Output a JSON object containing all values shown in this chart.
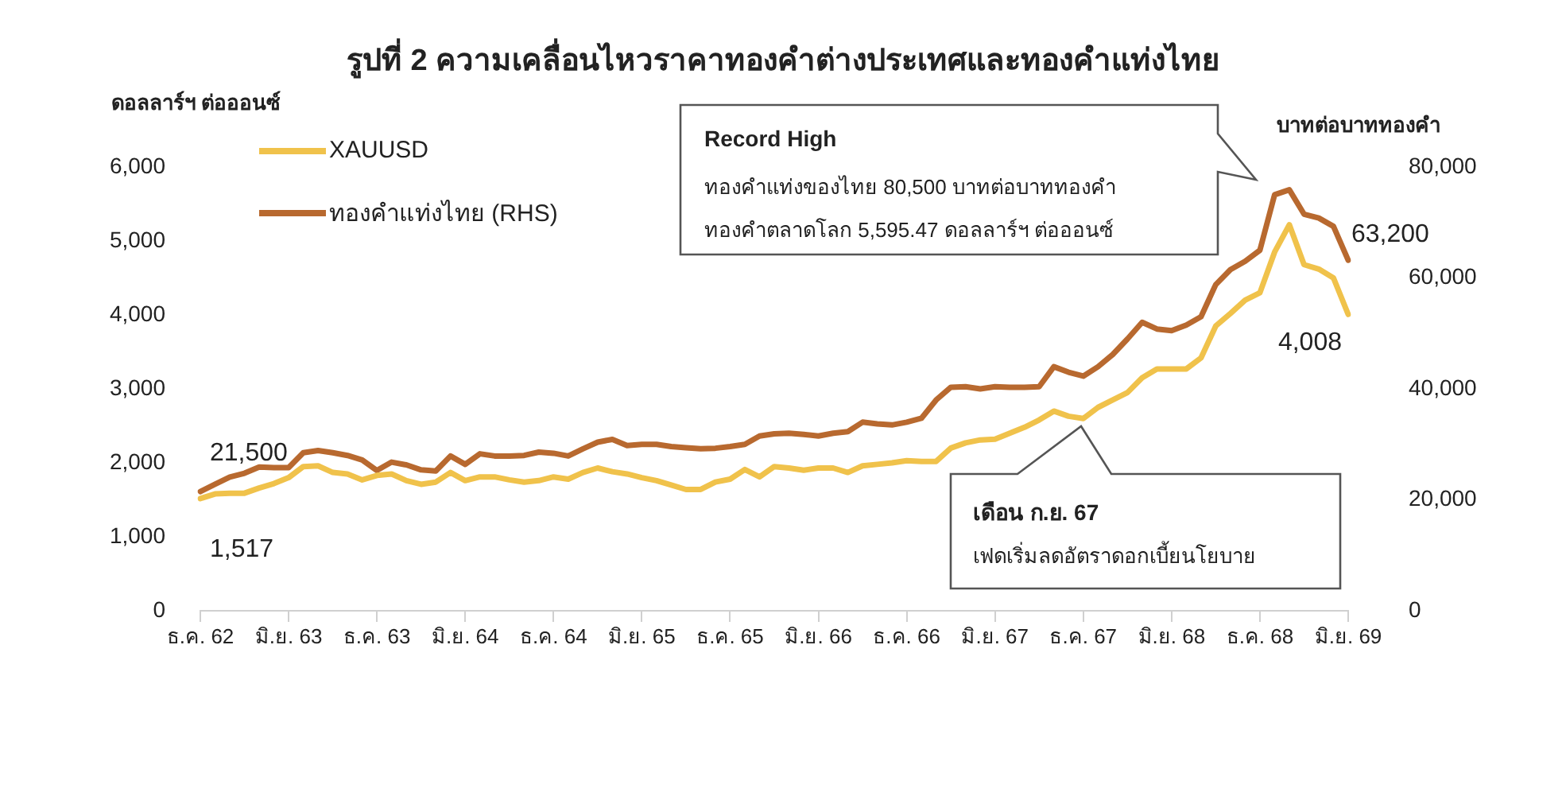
{
  "chart_data": {
    "type": "line",
    "title": "รูปที่ 2 ความเคลื่อนไหวราคาทองคำต่างประเทศและทองคำแท่งไทย",
    "ylabel": "ดอลลาร์ฯ ต่อออนซ์",
    "y2label": "บาทต่อบาททองคำ",
    "categories": [
      "ธ.ค. 62",
      null,
      null,
      null,
      null,
      null,
      "มิ.ย. 63",
      null,
      null,
      null,
      null,
      null,
      "ธ.ค. 63",
      null,
      null,
      null,
      null,
      null,
      "มิ.ย. 64",
      null,
      null,
      null,
      null,
      null,
      "ธ.ค. 64",
      null,
      null,
      null,
      null,
      null,
      "มิ.ย. 65",
      null,
      null,
      null,
      null,
      null,
      "ธ.ค. 65",
      null,
      null,
      null,
      null,
      null,
      "มิ.ย. 66",
      null,
      null,
      null,
      null,
      null,
      "ธ.ค. 66",
      null,
      null,
      null,
      null,
      null,
      "มิ.ย. 67",
      null,
      null,
      null,
      null,
      null,
      "ธ.ค. 67",
      null,
      null,
      null,
      null,
      null,
      "มิ.ย. 68",
      null,
      null,
      null,
      null,
      null,
      "ธ.ค. 68",
      null,
      null,
      null,
      null,
      null,
      "มิ.ย. 69"
    ],
    "series": [
      {
        "name": "XAUUSD",
        "color": "#f0c24b",
        "values": [
          1517,
          1580,
          1590,
          1590,
          1660,
          1720,
          1800,
          1950,
          1960,
          1870,
          1850,
          1770,
          1830,
          1850,
          1760,
          1710,
          1740,
          1870,
          1760,
          1810,
          1810,
          1770,
          1740,
          1760,
          1810,
          1780,
          1870,
          1930,
          1880,
          1850,
          1800,
          1760,
          1700,
          1640,
          1640,
          1740,
          1780,
          1910,
          1810,
          1950,
          1930,
          1900,
          1930,
          1930,
          1870,
          1960,
          1980,
          2000,
          2030,
          2020,
          2020,
          2200,
          2270,
          2310,
          2320,
          2400,
          2480,
          2580,
          2700,
          2630,
          2600,
          2750,
          2850,
          2950,
          3150,
          3270,
          3270,
          3270,
          3420,
          3850,
          4020,
          4200,
          4300,
          4850,
          5220,
          4680,
          4620,
          4500,
          4008
        ],
        "value_labels": [
          "1,517",
          null,
          null,
          null,
          null,
          null,
          null,
          null,
          null,
          null,
          null,
          null,
          null,
          null,
          null,
          null,
          null,
          null,
          null,
          null,
          null,
          null,
          null,
          null,
          null,
          null,
          null,
          null,
          null,
          null,
          null,
          null,
          null,
          null,
          null,
          null,
          null,
          null,
          null,
          null,
          null,
          null,
          null,
          null,
          null,
          null,
          null,
          null,
          null,
          null,
          null,
          null,
          null,
          null,
          null,
          null,
          null,
          null,
          null,
          null,
          null,
          null,
          null,
          null,
          null,
          null,
          null,
          null,
          null,
          null,
          null,
          null,
          null,
          null,
          null,
          null,
          null,
          null,
          "4,008"
        ]
      },
      {
        "name": "ทองคำแท่งไทย (RHS)",
        "color": "#b8692f",
        "axis": "y2",
        "values": [
          21500,
          22800,
          24100,
          24800,
          25900,
          25800,
          25800,
          28500,
          28900,
          28500,
          28000,
          27200,
          25300,
          26800,
          26300,
          25400,
          25200,
          27900,
          26400,
          28300,
          27900,
          27900,
          28000,
          28600,
          28400,
          27900,
          29200,
          30400,
          30900,
          29800,
          30000,
          30000,
          29600,
          29400,
          29200,
          29300,
          29600,
          30000,
          31500,
          31900,
          32000,
          31800,
          31500,
          32000,
          32300,
          34000,
          33700,
          33500,
          34000,
          34700,
          38000,
          40300,
          40400,
          40000,
          40400,
          40300,
          40300,
          40400,
          44000,
          43000,
          42300,
          44000,
          46200,
          49000,
          52000,
          50800,
          50500,
          51500,
          53000,
          58800,
          61500,
          63000,
          65000,
          75000,
          75900,
          71500,
          70800,
          69300,
          63200
        ],
        "value_labels": [
          "21,500",
          null,
          null,
          null,
          null,
          null,
          null,
          null,
          null,
          null,
          null,
          null,
          null,
          null,
          null,
          null,
          null,
          null,
          null,
          null,
          null,
          null,
          null,
          null,
          null,
          null,
          null,
          null,
          null,
          null,
          null,
          null,
          null,
          null,
          null,
          null,
          null,
          null,
          null,
          null,
          null,
          null,
          null,
          null,
          null,
          null,
          null,
          null,
          null,
          null,
          null,
          null,
          null,
          null,
          null,
          null,
          null,
          null,
          null,
          null,
          null,
          null,
          null,
          null,
          null,
          null,
          null,
          null,
          null,
          null,
          null,
          null,
          null,
          null,
          null,
          null,
          null,
          null,
          "63,200"
        ]
      }
    ],
    "ylim": [
      0,
      6000
    ],
    "yticks": [
      0,
      {
        "value": 1000,
        "label": "1,000"
      },
      {
        "value": 2000,
        "label": "2,000"
      },
      {
        "value": 3000,
        "label": "3,000"
      },
      {
        "value": 4000,
        "label": "4,000"
      },
      {
        "value": 5000,
        "label": "5,000"
      },
      {
        "value": 6000,
        "label": "6,000"
      }
    ],
    "y2lim": [
      0,
      80000
    ],
    "y2ticks": [
      0,
      {
        "value": 20000,
        "label": "20,000"
      },
      {
        "value": 40000,
        "label": "40,000"
      },
      {
        "value": 60000,
        "label": "60,000"
      },
      {
        "value": 80000,
        "label": "80,000"
      }
    ],
    "grid": false,
    "legend": "top left",
    "marker": "none",
    "line_style": "solid",
    "annotations": [
      "Record High",
      "ทองคำแท่งของไทย 80,500 บาทต่อบาททองคำ",
      "ทองคำตลาดโลก 5,595.47 ดอลลาร์ฯ ต่อออนซ์",
      "เดือน ก.ย. 67",
      "เฟดเริ่มลดอัตราดอกเบี้ยนโยบาย"
    ]
  }
}
